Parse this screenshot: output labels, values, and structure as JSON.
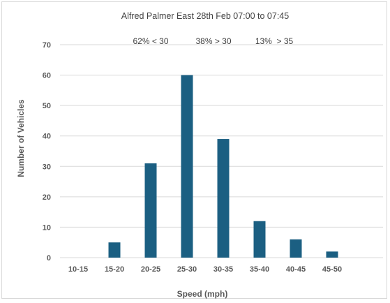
{
  "chart_data": {
    "type": "bar",
    "title": "Alfred Palmer East 28th Feb 07:00 to 07:45",
    "xlabel": "Speed (mph)",
    "ylabel": "Number of Vehicles",
    "categories": [
      "10-15",
      "15-20",
      "20-25",
      "25-30",
      "30-35",
      "35-40",
      "40-45",
      "45-50"
    ],
    "values": [
      0,
      5,
      31,
      60,
      39,
      12,
      6,
      2
    ],
    "ylim": [
      0,
      70
    ],
    "yticks": [
      0,
      10,
      20,
      30,
      40,
      50,
      60,
      70
    ],
    "grid": "horizontal",
    "bar_color": "#1b5f82",
    "annotations": [
      "62% < 30",
      "38% > 30",
      "13%  > 35"
    ]
  }
}
